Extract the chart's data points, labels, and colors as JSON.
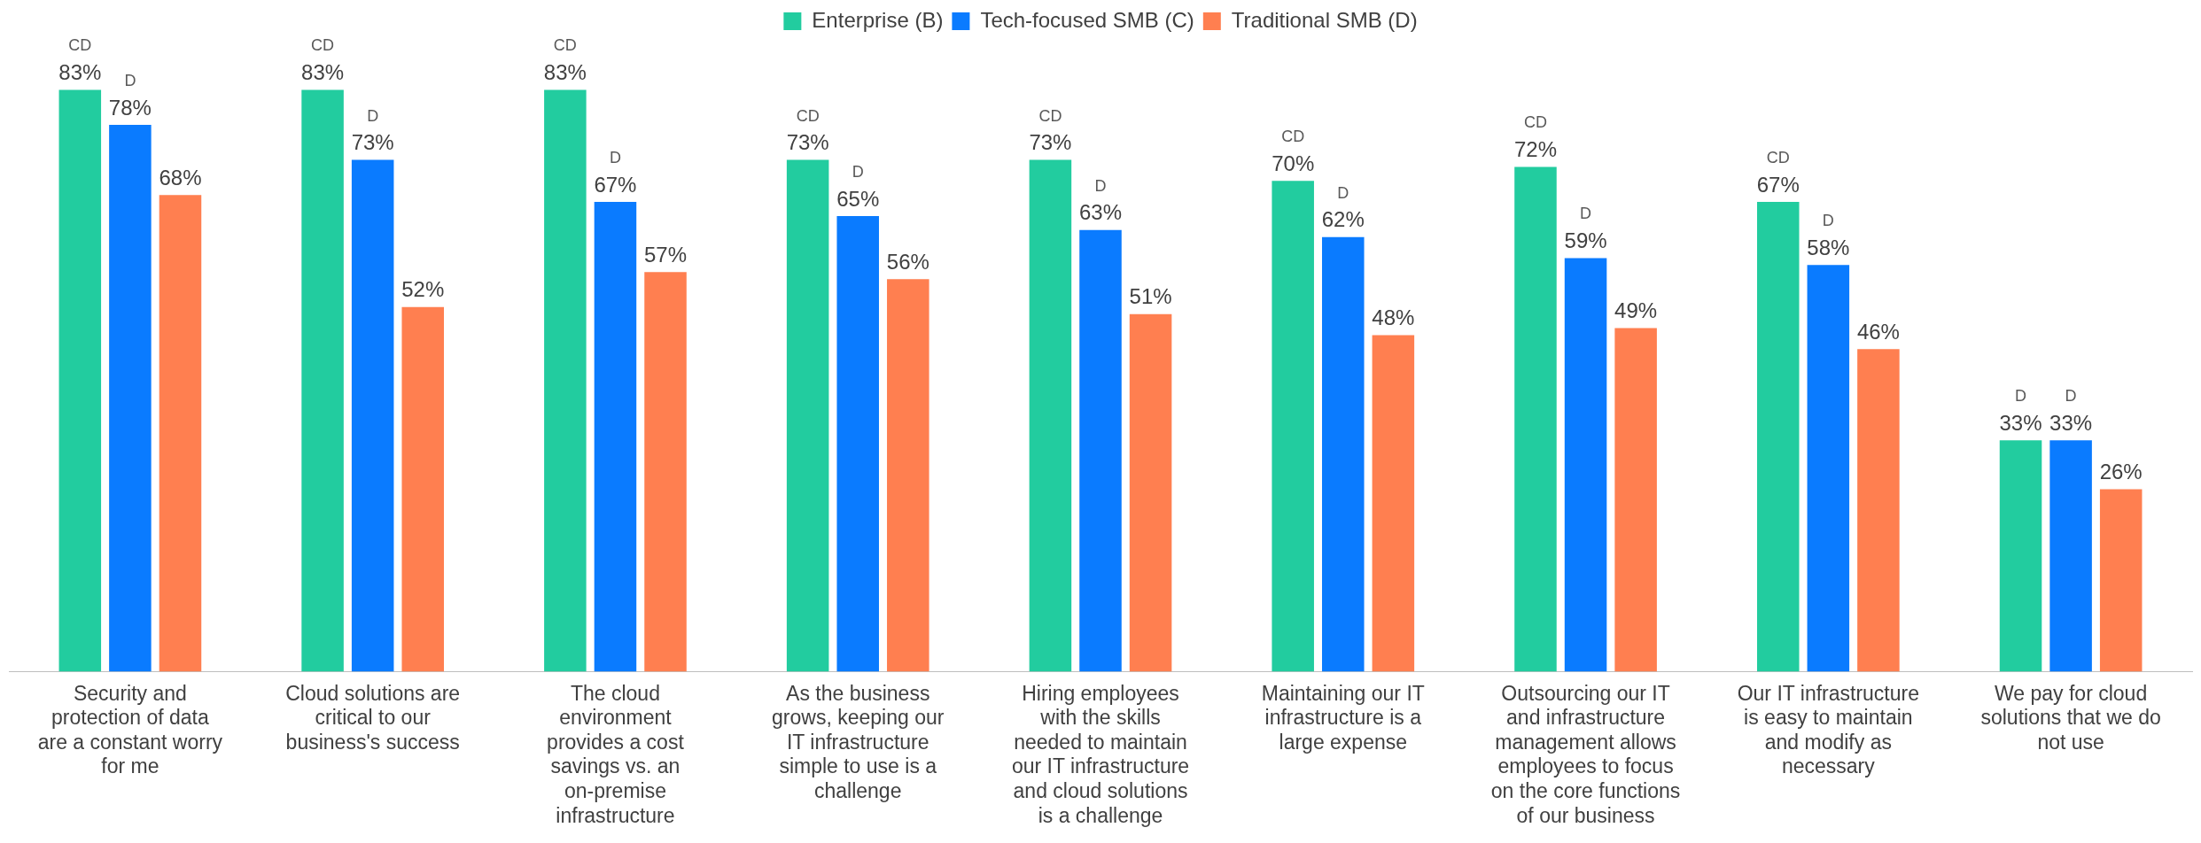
{
  "chart_data": {
    "type": "bar",
    "legend": "top",
    "categories": [
      "Security and protection of data are a constant worry for me",
      "Cloud solutions are critical to our business's success",
      "The cloud environment provides a cost savings vs. an on-premise infrastructure",
      "As the business grows, keeping our IT infrastructure simple to use is a challenge",
      "Hiring employees with the skills needed to maintain our IT infrastructure and cloud solutions is a challenge",
      "Maintaining our IT infrastructure is a large expense",
      "Outsourcing our IT and infrastructure management allows employees to focus on the core functions of our business",
      "Our IT infrastructure is easy to maintain and modify as necessary",
      "We pay for cloud solutions that we do not use"
    ],
    "series": [
      {
        "name": "Enterprise (B)",
        "color": "#22cc9f",
        "values": [
          83,
          83,
          83,
          73,
          73,
          70,
          72,
          67,
          33
        ],
        "value_labels": [
          "CD\n83%",
          "CD\n83%",
          "CD\n83%",
          "CD\n73%",
          "CD\n73%",
          "CD\n70%",
          "CD\n72%",
          "CD\n67%",
          "D\n33%"
        ]
      },
      {
        "name": "Tech-focused SMB (C)",
        "color": "#0a7bff",
        "values": [
          78,
          73,
          67,
          65,
          63,
          62,
          59,
          58,
          33
        ],
        "value_labels": [
          "D\n78%",
          "D\n73%",
          "D\n67%",
          "D\n65%",
          "D\n63%",
          "D\n62%",
          "D\n59%",
          "D\n58%",
          "D\n33%"
        ]
      },
      {
        "name": "Traditional SMB (D)",
        "color": "#ff7f50",
        "values": [
          68,
          52,
          57,
          56,
          51,
          48,
          49,
          46,
          26
        ],
        "value_labels": [
          "68%",
          "52%",
          "57%",
          "56%",
          "51%",
          "48%",
          "49%",
          "46%",
          "26%"
        ]
      }
    ]
  }
}
